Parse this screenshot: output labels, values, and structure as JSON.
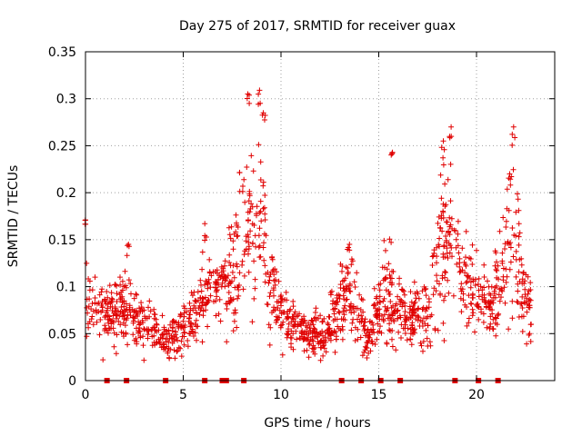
{
  "chart_data": {
    "type": "scatter",
    "title": "Day 275 of 2017, SRMTID for receiver guax",
    "xlabel": "GPS time / hours",
    "ylabel": "SRMTID / TECUs",
    "xlim": [
      0,
      24
    ],
    "ylim": [
      0,
      0.35
    ],
    "grid": true,
    "marker": "+",
    "marker_color": "#e00000",
    "xticks": [
      0,
      5,
      10,
      15,
      20
    ],
    "xtick_labels": [
      "0",
      "5",
      "10",
      "15",
      "20"
    ],
    "yticks": [
      0,
      0.05,
      0.1,
      0.15,
      0.2,
      0.25,
      0.3,
      0.35
    ],
    "ytick_labels": [
      "0",
      "0.05",
      "0.1",
      "0.15",
      "0.2",
      "0.25",
      "0.3",
      "0.35"
    ],
    "series": [
      {
        "name": "SRMTID",
        "profile_hours": [
          0,
          0.3,
          0.6,
          1.0,
          1.5,
          2.0,
          2.5,
          3.0,
          3.5,
          4.0,
          4.5,
          5.0,
          5.5,
          6.0,
          6.5,
          7.0,
          7.5,
          8.0,
          8.5,
          9.0,
          9.5,
          10.0,
          10.5,
          11.0,
          11.5,
          12.0,
          12.5,
          13.0,
          13.5,
          14.0,
          14.5,
          15.0,
          15.5,
          16.0,
          16.5,
          17.0,
          17.5,
          18.0,
          18.5,
          19.0,
          19.5,
          20.0,
          20.5,
          21.0,
          21.5,
          22.0,
          22.5,
          22.8
        ],
        "profile_median": [
          0.09,
          0.08,
          0.08,
          0.07,
          0.07,
          0.075,
          0.07,
          0.06,
          0.055,
          0.045,
          0.045,
          0.055,
          0.07,
          0.085,
          0.1,
          0.1,
          0.11,
          0.14,
          0.16,
          0.16,
          0.1,
          0.07,
          0.06,
          0.055,
          0.05,
          0.05,
          0.05,
          0.075,
          0.095,
          0.06,
          0.045,
          0.08,
          0.09,
          0.075,
          0.07,
          0.065,
          0.065,
          0.12,
          0.16,
          0.13,
          0.1,
          0.09,
          0.085,
          0.085,
          0.13,
          0.15,
          0.08,
          0.08
        ],
        "profile_spread": [
          0.04,
          0.03,
          0.025,
          0.03,
          0.025,
          0.03,
          0.025,
          0.025,
          0.02,
          0.015,
          0.02,
          0.02,
          0.025,
          0.03,
          0.03,
          0.03,
          0.05,
          0.07,
          0.08,
          0.07,
          0.04,
          0.025,
          0.02,
          0.02,
          0.02,
          0.02,
          0.02,
          0.03,
          0.04,
          0.025,
          0.02,
          0.035,
          0.05,
          0.03,
          0.03,
          0.03,
          0.035,
          0.06,
          0.07,
          0.05,
          0.04,
          0.03,
          0.03,
          0.035,
          0.06,
          0.06,
          0.03,
          0.03
        ],
        "peaks": [
          {
            "x": 0.0,
            "y": 0.171
          },
          {
            "x": 8.3,
            "y": 0.305
          },
          {
            "x": 8.9,
            "y": 0.309
          },
          {
            "x": 9.1,
            "y": 0.285
          },
          {
            "x": 15.7,
            "y": 0.243
          },
          {
            "x": 18.3,
            "y": 0.255
          },
          {
            "x": 18.7,
            "y": 0.27
          },
          {
            "x": 21.9,
            "y": 0.27
          },
          {
            "x": 21.7,
            "y": 0.22
          },
          {
            "x": 6.1,
            "y": 0.167
          },
          {
            "x": 2.2,
            "y": 0.145
          },
          {
            "x": 12.6,
            "y": 0.095
          },
          {
            "x": 13.5,
            "y": 0.145
          }
        ],
        "n_points": 1500
      }
    ],
    "zero_markers_x": [
      1.1,
      2.1,
      4.1,
      6.1,
      7.0,
      7.2,
      8.1,
      13.1,
      14.1,
      15.1,
      16.1,
      18.9,
      20.1,
      21.1
    ]
  }
}
